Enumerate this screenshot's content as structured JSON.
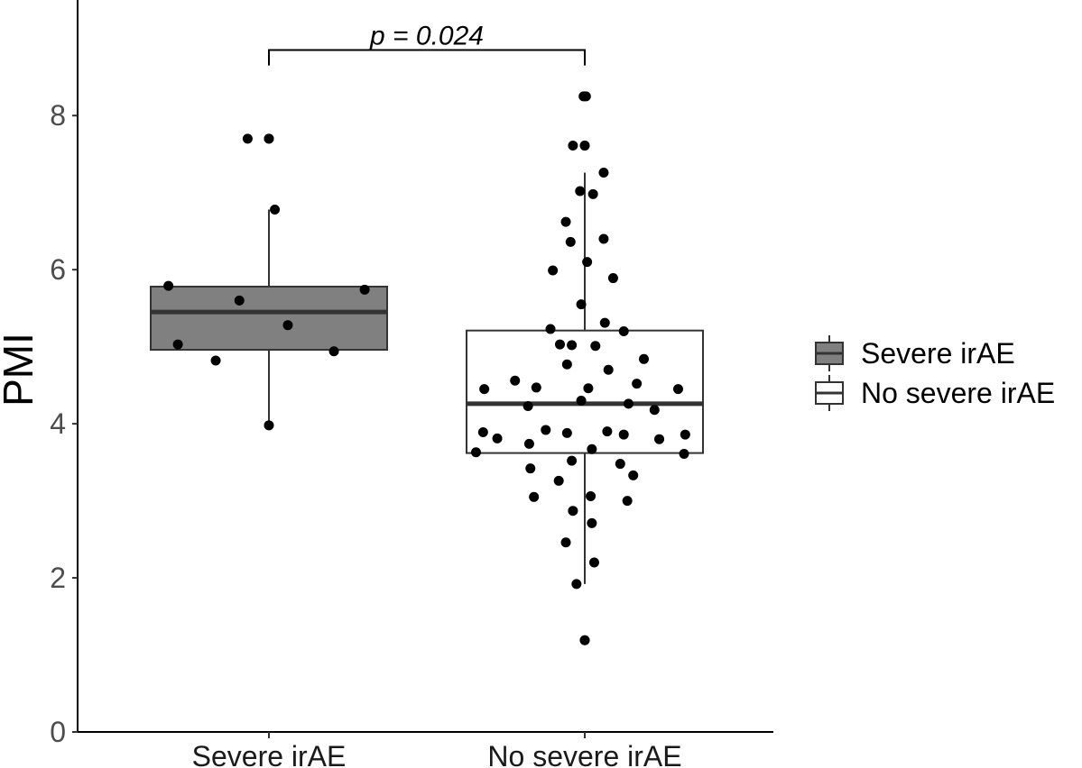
{
  "chart_data": {
    "type": "box",
    "ylabel": "PMI",
    "xlabel": "",
    "ylim": [
      0,
      9.5
    ],
    "yticks": [
      0,
      2,
      4,
      6,
      8
    ],
    "grid": false,
    "legend_position": "right",
    "categories": [
      "Severe irAE",
      "No severe irAE"
    ],
    "series": [
      {
        "name": "Severe irAE",
        "fill": "#808080",
        "box": {
          "whisker_low": 3.98,
          "q1": 4.96,
          "median": 5.45,
          "q3": 5.78,
          "whisker_high": 6.78
        },
        "outliers": [
          7.7
        ],
        "points": [
          {
            "y": 7.7,
            "jitter": -0.18
          },
          {
            "y": 7.7,
            "jitter": 0.0
          },
          {
            "y": 6.78,
            "jitter": 0.05
          },
          {
            "y": 5.79,
            "jitter": -0.85
          },
          {
            "y": 5.6,
            "jitter": -0.25
          },
          {
            "y": 5.28,
            "jitter": 0.16
          },
          {
            "y": 5.74,
            "jitter": 0.81
          },
          {
            "y": 5.03,
            "jitter": -0.77
          },
          {
            "y": 4.94,
            "jitter": 0.55
          },
          {
            "y": 4.82,
            "jitter": -0.45
          },
          {
            "y": 3.98,
            "jitter": 0.0
          }
        ]
      },
      {
        "name": "No severe irAE",
        "fill": "#ffffff",
        "box": {
          "whisker_low": 1.92,
          "q1": 3.62,
          "median": 4.26,
          "q3": 5.21,
          "whisker_high": 7.26
        },
        "outliers": [
          8.25,
          7.61,
          1.19
        ],
        "points": [
          {
            "y": 8.25,
            "jitter": -0.01
          },
          {
            "y": 8.25,
            "jitter": 0.01
          },
          {
            "y": 7.61,
            "jitter": -0.1
          },
          {
            "y": 7.61,
            "jitter": 0.0
          },
          {
            "y": 7.26,
            "jitter": 0.16
          },
          {
            "y": 7.02,
            "jitter": -0.04
          },
          {
            "y": 6.98,
            "jitter": 0.07
          },
          {
            "y": 6.62,
            "jitter": -0.16
          },
          {
            "y": 6.4,
            "jitter": 0.16
          },
          {
            "y": 6.36,
            "jitter": -0.12
          },
          {
            "y": 6.1,
            "jitter": 0.02
          },
          {
            "y": 5.99,
            "jitter": -0.27
          },
          {
            "y": 5.89,
            "jitter": 0.24
          },
          {
            "y": 5.55,
            "jitter": -0.03
          },
          {
            "y": 5.31,
            "jitter": 0.17
          },
          {
            "y": 5.23,
            "jitter": -0.29
          },
          {
            "y": 5.2,
            "jitter": 0.33
          },
          {
            "y": 5.03,
            "jitter": -0.21
          },
          {
            "y": 5.02,
            "jitter": -0.11
          },
          {
            "y": 5.01,
            "jitter": 0.09
          },
          {
            "y": 4.84,
            "jitter": 0.5
          },
          {
            "y": 4.77,
            "jitter": -0.15
          },
          {
            "y": 4.7,
            "jitter": 0.2
          },
          {
            "y": 4.56,
            "jitter": -0.59
          },
          {
            "y": 4.52,
            "jitter": 0.44
          },
          {
            "y": 4.47,
            "jitter": -0.41
          },
          {
            "y": 4.46,
            "jitter": 0.03
          },
          {
            "y": 4.45,
            "jitter": -0.85
          },
          {
            "y": 4.45,
            "jitter": 0.79
          },
          {
            "y": 4.3,
            "jitter": -0.03
          },
          {
            "y": 4.26,
            "jitter": 0.37
          },
          {
            "y": 4.23,
            "jitter": -0.48
          },
          {
            "y": 4.18,
            "jitter": 0.59
          },
          {
            "y": 3.92,
            "jitter": -0.33
          },
          {
            "y": 3.9,
            "jitter": 0.19
          },
          {
            "y": 3.89,
            "jitter": -0.86
          },
          {
            "y": 3.88,
            "jitter": -0.15
          },
          {
            "y": 3.86,
            "jitter": 0.33
          },
          {
            "y": 3.86,
            "jitter": 0.85
          },
          {
            "y": 3.81,
            "jitter": -0.74
          },
          {
            "y": 3.8,
            "jitter": 0.63
          },
          {
            "y": 3.74,
            "jitter": -0.47
          },
          {
            "y": 3.67,
            "jitter": 0.06
          },
          {
            "y": 3.63,
            "jitter": -0.92
          },
          {
            "y": 3.61,
            "jitter": 0.84
          },
          {
            "y": 3.52,
            "jitter": -0.11
          },
          {
            "y": 3.48,
            "jitter": 0.3
          },
          {
            "y": 3.42,
            "jitter": -0.46
          },
          {
            "y": 3.33,
            "jitter": 0.41
          },
          {
            "y": 3.26,
            "jitter": -0.22
          },
          {
            "y": 3.06,
            "jitter": 0.05
          },
          {
            "y": 3.05,
            "jitter": -0.43
          },
          {
            "y": 3.0,
            "jitter": 0.36
          },
          {
            "y": 2.87,
            "jitter": -0.1
          },
          {
            "y": 2.71,
            "jitter": 0.06
          },
          {
            "y": 2.46,
            "jitter": -0.16
          },
          {
            "y": 2.2,
            "jitter": 0.08
          },
          {
            "y": 1.92,
            "jitter": -0.07
          },
          {
            "y": 1.19,
            "jitter": 0.0
          }
        ]
      }
    ],
    "annotation": {
      "text": "p = 0.024",
      "from": "Severe irAE",
      "to": "No severe irAE",
      "y": 8.85,
      "tip_length": 0.2
    }
  }
}
